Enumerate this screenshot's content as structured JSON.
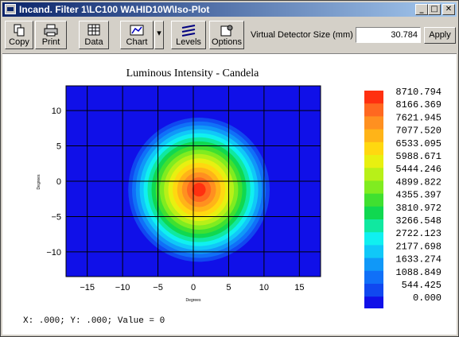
{
  "window": {
    "title": "Incand. Filter 1\\LC100 WAHID10W\\Iso-Plot",
    "minimize_glyph": "_",
    "maximize_glyph": "□",
    "close_glyph": "✕"
  },
  "toolbar": {
    "copy_label": "Copy",
    "print_label": "Print",
    "data_label": "Data",
    "chart_label": "Chart",
    "levels_label": "Levels",
    "options_label": "Options",
    "dropdown_glyph": "▾",
    "vds_label": "Virtual Detector Size (mm)",
    "vds_value": "30.784",
    "apply_label": "Apply"
  },
  "status": {
    "text": "X: .000; Y: .000; Value = 0"
  },
  "chart_data": {
    "type": "heatmap",
    "title": "Luminous Intensity - Candela",
    "xlabel": "Degrees",
    "ylabel": "Degrees",
    "xlim": [
      -18,
      18
    ],
    "ylim": [
      -13.5,
      13.5
    ],
    "xticks": [
      -15,
      -10,
      -5,
      0,
      5,
      10,
      15
    ],
    "yticks": [
      10,
      5,
      0,
      -5,
      -10
    ],
    "peak": {
      "x": 0.8,
      "y": -1.2,
      "value": 8710.794
    },
    "grid": true,
    "legend": "right",
    "levels": [
      8710.794,
      8166.369,
      7621.945,
      7077.52,
      6533.095,
      5988.671,
      5444.246,
      4899.822,
      4355.397,
      3810.972,
      3266.548,
      2722.123,
      2177.698,
      1633.274,
      1088.849,
      544.425,
      0.0
    ],
    "level_labels": [
      "8710.794",
      "8166.369",
      "7621.945",
      "7077.520",
      "6533.095",
      "5988.671",
      "5444.246",
      "4899.822",
      "4355.397",
      "3810.972",
      "3266.548",
      "2722.123",
      "2177.698",
      "1633.274",
      "1088.849",
      "544.425",
      "0.000"
    ],
    "colors": [
      "#ff3010",
      "#ff6820",
      "#ff9020",
      "#ffb418",
      "#ffd810",
      "#e8f010",
      "#b8f018",
      "#80ec20",
      "#40e030",
      "#10d850",
      "#10e8a0",
      "#10f0f0",
      "#10c8f8",
      "#1098f8",
      "#1070f8",
      "#1048f0",
      "#1010e8"
    ]
  }
}
